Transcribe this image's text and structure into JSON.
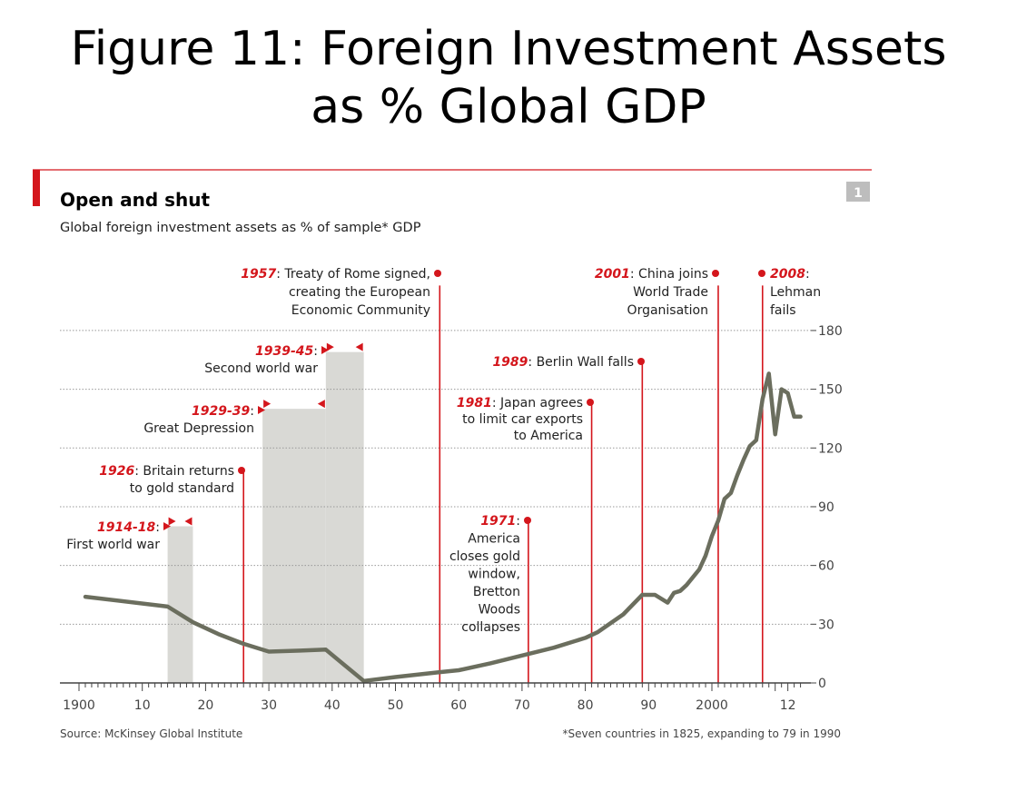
{
  "slide": {
    "title_line1": "Figure 11: Foreign Investment Assets",
    "title_line2": "as % Global GDP"
  },
  "chart_data": {
    "type": "line",
    "title": "Open and shut",
    "subtitle": "Global foreign investment assets as % of sample* GDP",
    "badge": "1",
    "source": "Source: McKinsey Global Institute",
    "footnote": "*Seven countries in 1825, expanding to 79 in 1990",
    "xlim": [
      1900,
      2014
    ],
    "ylim": [
      0,
      180
    ],
    "x_tick_labels": [
      {
        "year": 1900,
        "label": "1900"
      },
      {
        "year": 1910,
        "label": "10"
      },
      {
        "year": 1920,
        "label": "20"
      },
      {
        "year": 1930,
        "label": "30"
      },
      {
        "year": 1940,
        "label": "40"
      },
      {
        "year": 1950,
        "label": "50"
      },
      {
        "year": 1960,
        "label": "60"
      },
      {
        "year": 1970,
        "label": "70"
      },
      {
        "year": 1980,
        "label": "80"
      },
      {
        "year": 1990,
        "label": "90"
      },
      {
        "year": 2000,
        "label": "2000"
      },
      {
        "year": 2012,
        "label": "12"
      }
    ],
    "y_ticks": [
      0,
      30,
      60,
      90,
      120,
      150,
      180
    ],
    "grid": true,
    "axis_side": "right",
    "series": [
      {
        "values": [
          [
            1901,
            44
          ],
          [
            1914,
            39
          ],
          [
            1918,
            31
          ],
          [
            1922,
            25
          ],
          [
            1926,
            20
          ],
          [
            1930,
            16
          ],
          [
            1935,
            16.5
          ],
          [
            1939,
            17
          ],
          [
            1942,
            9
          ],
          [
            1945,
            1
          ],
          [
            1950,
            3
          ],
          [
            1957,
            5.5
          ],
          [
            1960,
            6.5
          ],
          [
            1965,
            10
          ],
          [
            1970,
            14
          ],
          [
            1975,
            18
          ],
          [
            1980,
            23
          ],
          [
            1982,
            26
          ],
          [
            1986,
            35
          ],
          [
            1989,
            45
          ],
          [
            1991,
            45
          ],
          [
            1993,
            41
          ],
          [
            1994,
            46
          ],
          [
            1995,
            47
          ],
          [
            1996,
            50
          ],
          [
            1998,
            58
          ],
          [
            1999,
            65
          ],
          [
            2000,
            75
          ],
          [
            2001,
            83
          ],
          [
            2002,
            94
          ],
          [
            2003,
            97
          ],
          [
            2004,
            106
          ],
          [
            2005,
            114
          ],
          [
            2006,
            121
          ],
          [
            2007,
            124
          ],
          [
            2008,
            145
          ],
          [
            2009,
            158
          ],
          [
            2010,
            127
          ],
          [
            2011,
            150
          ],
          [
            2012,
            148
          ],
          [
            2013,
            136
          ],
          [
            2014,
            136
          ]
        ]
      }
    ],
    "shaded_periods": [
      {
        "start": 1914,
        "end": 1918,
        "top": 80
      },
      {
        "start": 1929,
        "end": 1939,
        "top": 140
      },
      {
        "start": 1939,
        "end": 1945,
        "top": 169
      }
    ],
    "event_lines": [
      {
        "year": 1926,
        "top": 108
      },
      {
        "year": 1957,
        "top": 203
      },
      {
        "year": 1971,
        "top": 82
      },
      {
        "year": 1981,
        "top": 144
      },
      {
        "year": 1989,
        "top": 164
      },
      {
        "year": 2001,
        "top": 203
      },
      {
        "year": 2008,
        "top": 203
      }
    ],
    "annotations": [
      {
        "year_label": "1914-18",
        "lines": [
          "First world war"
        ]
      },
      {
        "year_label": "1926",
        "lines": [
          ": Britain returns",
          "to gold standard"
        ]
      },
      {
        "year_label": "1929-39",
        "lines": [
          "Great Depression"
        ]
      },
      {
        "year_label": "1939-45",
        "lines": [
          "Second world war"
        ]
      },
      {
        "year_label": "1957",
        "lines": [
          ": Treaty of Rome signed,",
          "creating the European",
          "Economic Community"
        ]
      },
      {
        "year_label": "1971",
        "lines": [
          "America",
          "closes gold",
          "window,",
          "Bretton",
          "Woods",
          "collapses"
        ]
      },
      {
        "year_label": "1981",
        "lines": [
          ": Japan agrees",
          "to limit car exports",
          "to America"
        ]
      },
      {
        "year_label": "1989",
        "lines": [
          ": Berlin Wall falls"
        ]
      },
      {
        "year_label": "2001",
        "lines": [
          ": China joins",
          "World Trade",
          "Organisation"
        ]
      },
      {
        "year_label": "2008",
        "lines": [
          ":",
          "Lehman",
          "fails"
        ]
      }
    ],
    "colors": {
      "line": "#6b6e5e",
      "shade": "#d9d9d5",
      "accent_red": "#d4161c",
      "grid": "#999999",
      "badge_bg": "#bdbdbd"
    }
  }
}
